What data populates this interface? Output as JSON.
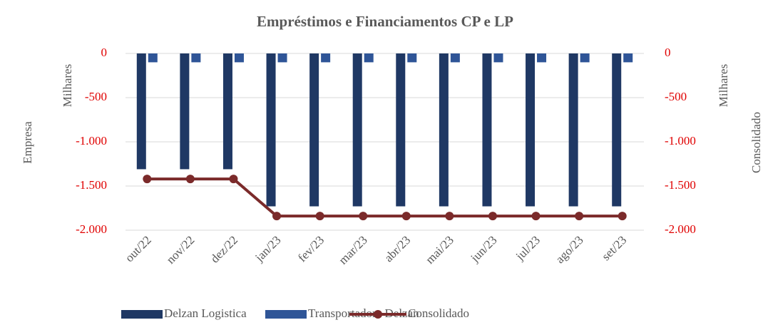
{
  "chart_data": {
    "type": "bar",
    "title": "Empréstimos e Financiamentos CP e LP",
    "y_label": "Empresa",
    "y_unit": "Milhares",
    "y2_label": "Consolidado",
    "y2_unit": "Milhares",
    "categories": [
      "out/22",
      "nov/22",
      "dez/22",
      "jan/23",
      "fev/23",
      "mar/23",
      "abr/23",
      "mai/23",
      "jun/23",
      "jul/23",
      "ago/23",
      "set/23"
    ],
    "series": [
      {
        "name": "Delzan Logistica",
        "type": "bar",
        "color": "#1f3864",
        "values": [
          -1310,
          -1310,
          -1310,
          -1730,
          -1730,
          -1730,
          -1730,
          -1730,
          -1730,
          -1730,
          -1730,
          -1730
        ]
      },
      {
        "name": "Transportadora Delzan",
        "type": "bar",
        "color": "#2f5597",
        "values": [
          -100,
          -100,
          -100,
          -100,
          -100,
          -100,
          -100,
          -100,
          -100,
          -100,
          -100,
          -100
        ]
      },
      {
        "name": "Consolidado",
        "type": "line",
        "axis": "y2",
        "color": "#7b2a2a",
        "values": [
          -1420,
          -1420,
          -1420,
          -1840,
          -1840,
          -1840,
          -1840,
          -1840,
          -1840,
          -1840,
          -1840,
          -1840
        ]
      }
    ],
    "ylim": [
      -2000,
      0
    ],
    "yticks": [
      0,
      -500,
      {
        "value": -1000,
        "label": "-1.000"
      },
      {
        "value": -1500,
        "label": "-1.500"
      },
      {
        "value": -2000,
        "label": "-2.000"
      }
    ],
    "y2lim": [
      -2000,
      0
    ],
    "y2ticks": [
      0,
      -500,
      {
        "value": -1000,
        "label": "-1.000"
      },
      {
        "value": -1500,
        "label": "-1.500"
      },
      {
        "value": -2000,
        "label": "-2.000"
      }
    ],
    "tick_color": "#e00000",
    "grid": true,
    "legend": "bottom"
  }
}
